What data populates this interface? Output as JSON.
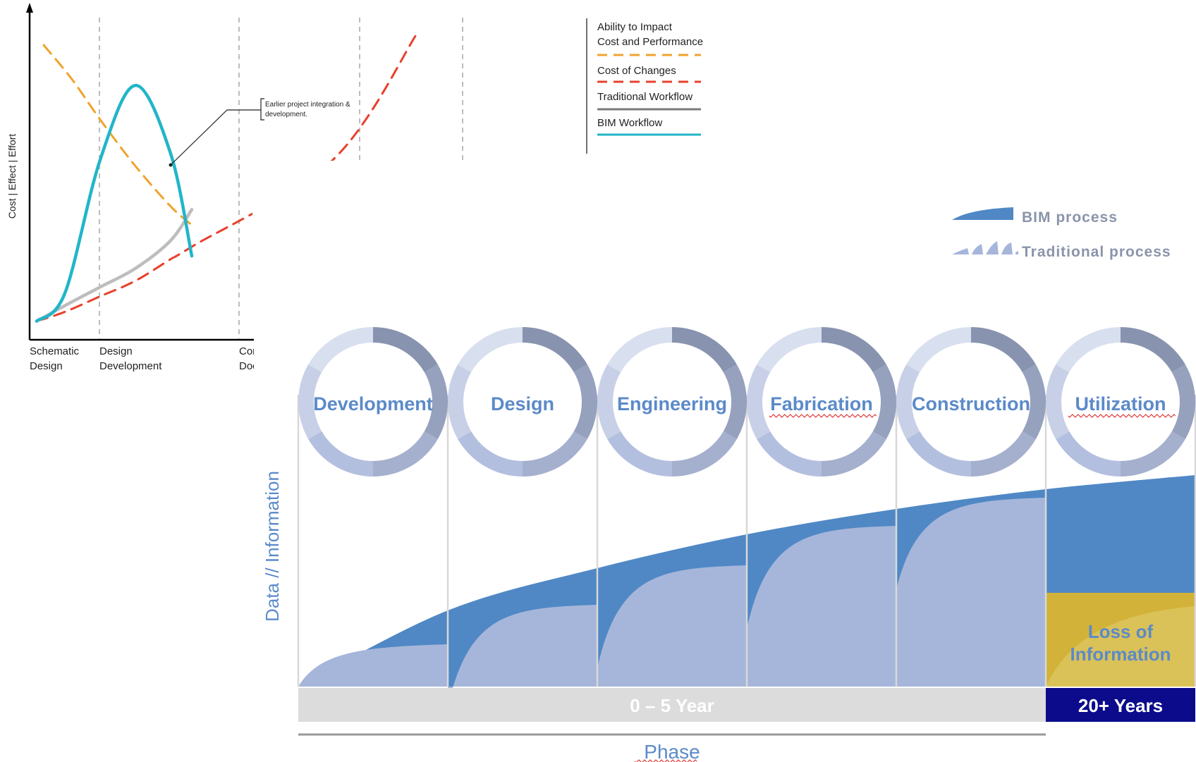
{
  "colors": {
    "ability": "#f0a32e",
    "cost_changes": "#e8402c",
    "traditional": "#bdbdbd",
    "bim": "#22b5c9",
    "legend_traditional_line": "#7a7a7a",
    "bim_area": "#5088c5",
    "trad_area": "#a6b6da",
    "ring_light": "#cdd5ea",
    "ring_dark": "#7c88a8",
    "ring_mid": "#9aa6c6",
    "phase_text": "#5b8ac9",
    "loss_fill": "#d2b238",
    "years_bg": "#0b0b8c",
    "timebar_bg": "#dcdcdc"
  },
  "chart_data": [
    {
      "type": "line",
      "ylabel": "Cost | Effect | Effort",
      "xlabel": "",
      "axis_labels_text": {
        "schematic": [
          "Schematic",
          "Design"
        ],
        "design_dev": [
          "Design",
          "Development"
        ],
        "construction_docs": [
          "Cor",
          "Doc"
        ]
      },
      "categories": [
        "Schematic Design",
        "Design Development",
        "Construction Documents"
      ],
      "annotation": [
        "Earlier project integration &",
        "development."
      ],
      "legend": [
        {
          "key": "ability",
          "label": [
            "Ability to Impact",
            "Cost and Performance"
          ],
          "style": "dashed"
        },
        {
          "key": "cost_changes",
          "label": [
            "Cost of Changes"
          ],
          "style": "dashed"
        },
        {
          "key": "traditional",
          "label": [
            "Traditional Workflow"
          ],
          "style": "solid"
        },
        {
          "key": "bim",
          "label": [
            "BIM Workflow"
          ],
          "style": "solid"
        }
      ],
      "series": [
        {
          "name": "Ability to Impact Cost and Performance",
          "key": "ability",
          "x": [
            0.2,
            0.6,
            1.0,
            1.5,
            2.0,
            2.3
          ],
          "y": [
            95,
            84,
            71,
            56,
            43,
            37
          ]
        },
        {
          "name": "Cost of Changes",
          "key": "cost_changes",
          "x": [
            0.1,
            0.5,
            1.0,
            1.5,
            2.0,
            2.3,
            4.3,
            5.5
          ],
          "y": [
            6,
            9,
            14,
            19,
            26,
            30,
            58,
            99
          ]
        },
        {
          "name": "Traditional Workflow",
          "key": "traditional",
          "x": [
            0.1,
            0.5,
            1.0,
            1.5,
            2.0,
            2.3
          ],
          "y": [
            6,
            11,
            17,
            23,
            32,
            42
          ]
        },
        {
          "name": "BIM Workflow",
          "key": "bim",
          "x": [
            0.1,
            0.5,
            1.0,
            1.5,
            2.0,
            2.3
          ],
          "y": [
            6,
            15,
            58,
            82,
            60,
            27
          ]
        }
      ]
    },
    {
      "type": "area",
      "ylabel": "Data // Information",
      "xlabel": "Phase",
      "categories": [
        "Development",
        "Design",
        "Engineering",
        "Fabrication",
        "Construction",
        "Utilization"
      ],
      "legend": [
        {
          "key": "bim",
          "label": "BIM process"
        },
        {
          "key": "traditional",
          "label": "Traditional process"
        }
      ],
      "series": [
        {
          "name": "BIM process",
          "x": [
            0,
            1,
            2,
            3,
            4,
            5,
            6
          ],
          "y": [
            0,
            27,
            42,
            54,
            63,
            70,
            75
          ]
        },
        {
          "name": "Traditional process",
          "x": [
            0,
            1,
            2,
            3,
            4,
            5
          ],
          "y": [
            15,
            29,
            43,
            57,
            67,
            24
          ]
        }
      ],
      "loss_label": [
        "Loss of",
        "Information"
      ],
      "timebars": [
        {
          "label": "0 – 5 Year",
          "from": 0,
          "to": 5
        },
        {
          "label": "20+ Years",
          "from": 5,
          "to": 6
        }
      ]
    }
  ]
}
